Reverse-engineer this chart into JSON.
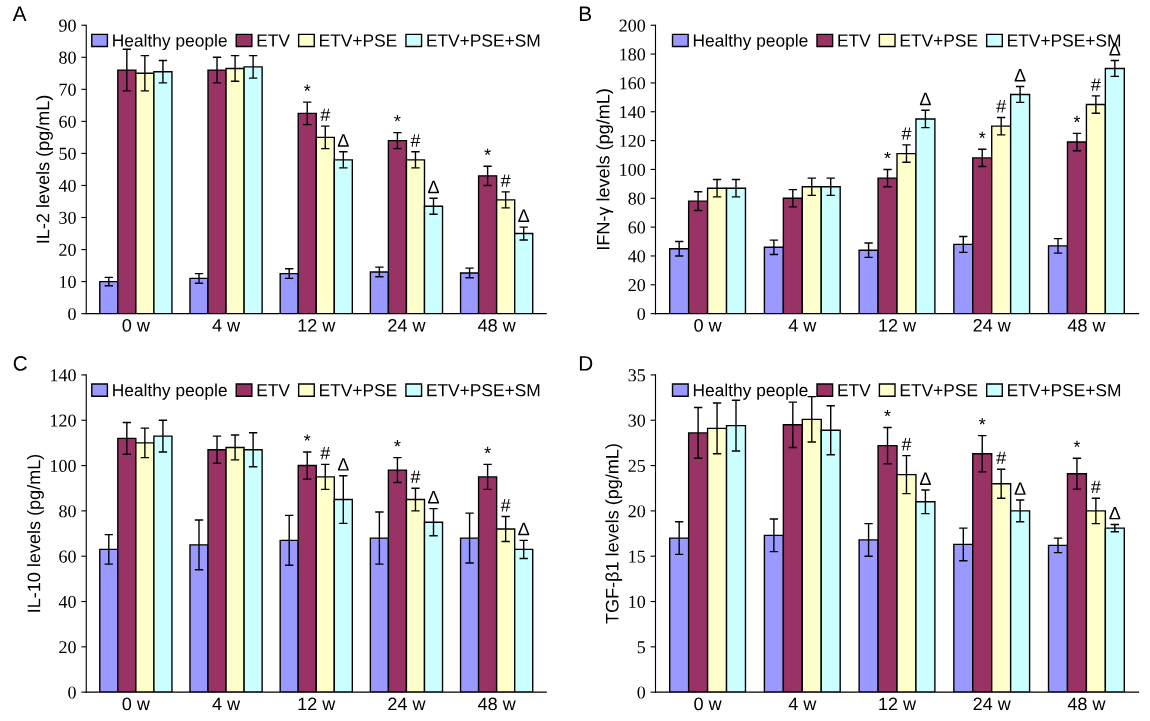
{
  "chart_data": [
    {
      "type": "bar",
      "title": "A",
      "ylabel": "IL-2 levels (pg/mL)",
      "categories": [
        "0 w",
        "4 w",
        "12 w",
        "24 w",
        "48 w"
      ],
      "ylim": [
        0,
        90
      ],
      "yticks": [
        0,
        10,
        20,
        30,
        40,
        50,
        60,
        70,
        80,
        90
      ],
      "grid": false,
      "legend": "top",
      "series": [
        {
          "name": "Healthy people",
          "color": "#9999ff",
          "values": [
            10,
            11,
            12.5,
            13,
            12.7
          ],
          "errors": [
            1.3,
            1.5,
            1.5,
            1.5,
            1.5
          ]
        },
        {
          "name": "ETV",
          "color": "#993366",
          "values": [
            76,
            76,
            62.5,
            54,
            43
          ],
          "errors": [
            6.5,
            4,
            3.5,
            2.5,
            3
          ],
          "value_labels": [
            null,
            null,
            "*",
            "*",
            "*"
          ]
        },
        {
          "name": "ETV+PSE",
          "color": "#ffffcc",
          "values": [
            75,
            76.5,
            55,
            48,
            35.5
          ],
          "errors": [
            5.5,
            4,
            3.5,
            2.5,
            2.5
          ],
          "value_labels": [
            null,
            null,
            "#",
            "#",
            "#"
          ]
        },
        {
          "name": "ETV+PSE+SM",
          "color": "#ccffff",
          "values": [
            75.5,
            77,
            48,
            33.5,
            25
          ],
          "errors": [
            3.5,
            3.5,
            2.5,
            2.5,
            2
          ],
          "value_labels": [
            null,
            null,
            "Δ",
            "Δ",
            "Δ"
          ]
        }
      ]
    },
    {
      "type": "bar",
      "title": "B",
      "ylabel": "IFN-γ levels (pg/mL)",
      "categories": [
        "0 w",
        "4 w",
        "12 w",
        "24 w",
        "48 w"
      ],
      "ylim": [
        0,
        200
      ],
      "yticks": [
        0,
        20,
        40,
        60,
        80,
        100,
        120,
        140,
        160,
        180,
        200
      ],
      "grid": false,
      "legend": "top",
      "series": [
        {
          "name": "Healthy people",
          "color": "#9999ff",
          "values": [
            45,
            46,
            44,
            48,
            47
          ],
          "errors": [
            5,
            5,
            5,
            5.5,
            5
          ]
        },
        {
          "name": "ETV",
          "color": "#993366",
          "values": [
            78,
            80,
            94,
            108,
            119
          ],
          "errors": [
            6.5,
            6,
            6,
            6,
            6
          ],
          "value_labels": [
            null,
            null,
            "*",
            "*",
            "*"
          ]
        },
        {
          "name": "ETV+PSE",
          "color": "#ffffcc",
          "values": [
            87,
            88,
            111,
            130,
            145
          ],
          "errors": [
            6,
            6,
            6,
            6,
            6
          ],
          "value_labels": [
            null,
            null,
            "#",
            "#",
            "#"
          ]
        },
        {
          "name": "ETV+PSE+SM",
          "color": "#ccffff",
          "values": [
            87,
            88,
            135,
            152,
            170
          ],
          "errors": [
            6,
            6,
            6,
            5.5,
            5.5
          ],
          "value_labels": [
            null,
            null,
            "Δ",
            "Δ",
            "Δ"
          ]
        }
      ]
    },
    {
      "type": "bar",
      "title": "C",
      "ylabel": "IL-10 levels (pg/mL)",
      "categories": [
        "0 w",
        "4 w",
        "12 w",
        "24 w",
        "48 w"
      ],
      "ylim": [
        0,
        140
      ],
      "yticks": [
        0,
        20,
        40,
        60,
        80,
        100,
        120,
        140
      ],
      "grid": false,
      "legend": "top",
      "series": [
        {
          "name": "Healthy people",
          "color": "#9999ff",
          "values": [
            63,
            65,
            67,
            68,
            68
          ],
          "errors": [
            6.5,
            11,
            11,
            11.5,
            11
          ]
        },
        {
          "name": "ETV",
          "color": "#993366",
          "values": [
            112,
            107,
            100,
            98,
            95
          ],
          "errors": [
            7,
            6,
            6,
            5.5,
            5.5
          ],
          "value_labels": [
            null,
            null,
            "*",
            "*",
            "*"
          ]
        },
        {
          "name": "ETV+PSE",
          "color": "#ffffcc",
          "values": [
            110,
            108,
            95,
            85,
            72
          ],
          "errors": [
            6.5,
            5.5,
            5.5,
            5,
            5.5
          ],
          "value_labels": [
            null,
            null,
            "#",
            "#",
            "#"
          ]
        },
        {
          "name": "ETV+PSE+SM",
          "color": "#ccffff",
          "values": [
            113,
            107,
            85,
            75,
            63
          ],
          "errors": [
            7,
            7.5,
            10.5,
            6,
            4
          ],
          "value_labels": [
            null,
            null,
            "Δ",
            "Δ",
            "Δ"
          ]
        }
      ]
    },
    {
      "type": "bar",
      "title": "D",
      "ylabel": "TGF-β1 levels (pg/mL)",
      "categories": [
        "0 w",
        "4 w",
        "12 w",
        "24 w",
        "48 w"
      ],
      "ylim": [
        0,
        35
      ],
      "yticks": [
        0,
        5,
        10,
        15,
        20,
        25,
        30,
        35
      ],
      "grid": false,
      "legend": "top",
      "series": [
        {
          "name": "Healthy people",
          "color": "#9999ff",
          "values": [
            17,
            17.3,
            16.8,
            16.3,
            16.2
          ],
          "errors": [
            1.8,
            1.8,
            1.8,
            1.8,
            0.8
          ]
        },
        {
          "name": "ETV",
          "color": "#993366",
          "values": [
            28.6,
            29.5,
            27.2,
            26.3,
            24.1
          ],
          "errors": [
            2.8,
            2.5,
            2,
            2,
            1.7
          ],
          "value_labels": [
            null,
            null,
            "*",
            "*",
            "*"
          ]
        },
        {
          "name": "ETV+PSE",
          "color": "#ffffcc",
          "values": [
            29.1,
            30.1,
            24,
            23,
            20
          ],
          "errors": [
            2.8,
            2.5,
            2.1,
            1.6,
            1.4
          ],
          "value_labels": [
            null,
            null,
            "#",
            "#",
            "#"
          ]
        },
        {
          "name": "ETV+PSE+SM",
          "color": "#ccffff",
          "values": [
            29.4,
            28.9,
            21,
            20,
            18.1
          ],
          "errors": [
            2.8,
            2.7,
            1.3,
            1.2,
            0.4
          ],
          "value_labels": [
            null,
            null,
            "Δ",
            "Δ",
            "Δ"
          ]
        }
      ]
    }
  ]
}
